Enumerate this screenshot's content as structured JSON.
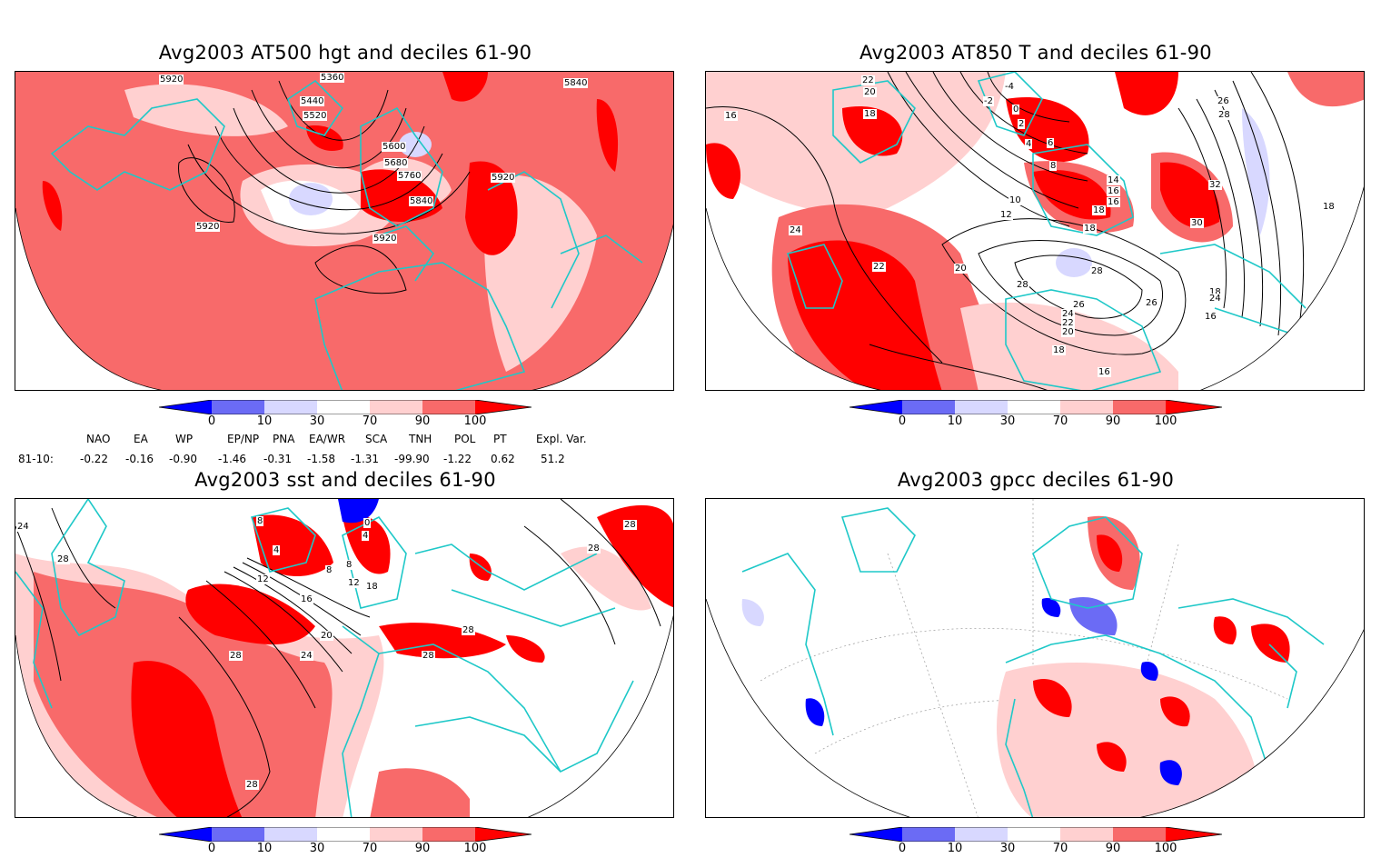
{
  "panels": [
    {
      "id": "tl",
      "title": "Avg2003 AT500 hgt and deciles 61-90",
      "contour_labels": [
        "5920",
        "5360",
        "5440",
        "5520",
        "5600",
        "5680",
        "5760",
        "5840",
        "5920",
        "5920",
        "5920",
        "5840"
      ]
    },
    {
      "id": "tr",
      "title": "Avg2003 AT850 T and deciles 61-90",
      "contour_labels": [
        "22",
        "20",
        "18",
        "16",
        "-4",
        "-2",
        "0",
        "2",
        "4",
        "6",
        "8",
        "10",
        "12",
        "14",
        "16",
        "16",
        "18",
        "18",
        "20",
        "22",
        "24",
        "26",
        "28",
        "28",
        "26",
        "24",
        "22",
        "20",
        "18",
        "16",
        "30",
        "32",
        "18",
        "16",
        "18",
        "24",
        "26",
        "28"
      ]
    },
    {
      "id": "bl",
      "title": "Avg2003 sst and deciles 61-90",
      "contour_labels": [
        "24",
        "28",
        "8",
        "4",
        "0",
        "4",
        "8",
        "8",
        "12",
        "18",
        "12",
        "16",
        "20",
        "24",
        "28",
        "28",
        "28",
        "28",
        "28",
        "28"
      ]
    },
    {
      "id": "br",
      "title": "Avg2003 gpcc deciles 61-90",
      "contour_labels": []
    }
  ],
  "colorbar": {
    "labels": [
      "0",
      "10",
      "30",
      "70",
      "90",
      "100"
    ],
    "colors": [
      "#0000ff",
      "#6b6bf5",
      "#d8d8ff",
      "#ffffff",
      "#ffd0d0",
      "#f86a6a",
      "#ff0000"
    ]
  },
  "indices": {
    "headers": [
      "NAO",
      "EA",
      "WP",
      "EP/NP",
      "PNA",
      "EA/WR",
      "SCA",
      "TNH",
      "POL",
      "PT",
      "Expl. Var."
    ],
    "row_label": "81-10:",
    "values": [
      "-0.22",
      "-0.16",
      "-0.90",
      "-1.46",
      "-0.31",
      "-1.58",
      "-1.31",
      "-99.90",
      "-1.22",
      "0.62",
      "51.2"
    ]
  },
  "colors": {
    "red_dark": "#ff0000",
    "red_mid": "#f86a6a",
    "red_light": "#ffd0d0",
    "blue_light": "#d8d8ff",
    "blue_mid": "#6b6bf5",
    "blue_dark": "#0000ff",
    "coast": "#00c0c0"
  }
}
